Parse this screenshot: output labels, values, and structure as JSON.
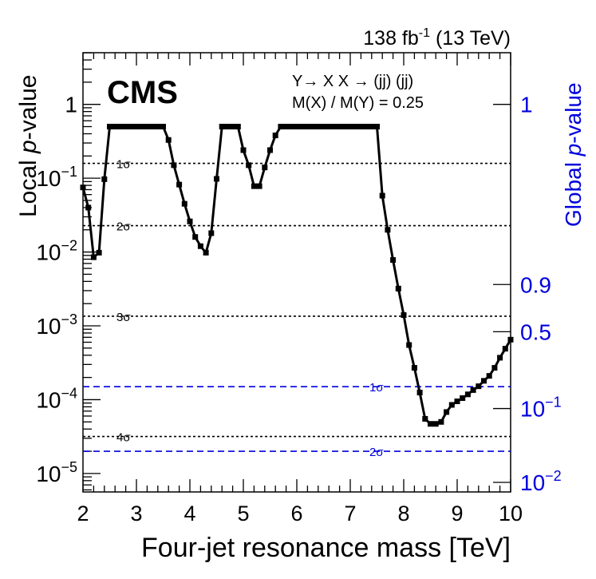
{
  "chart_data": {
    "type": "line",
    "title": "",
    "luminosity_label": "138 fb",
    "luminosity_exp": "-1",
    "luminosity_suffix": " (13 TeV)",
    "experiment_label": "CMS",
    "process_label": "Y→ X X → (jj) (jj)",
    "ratio_label": "M(X) / M(Y) = 0.25",
    "xlabel": "Four-jet resonance mass [TeV]",
    "ylabel_prefix": "Local ",
    "ylabel_italic": "p",
    "ylabel_suffix": "-value",
    "y2label_prefix": "Global ",
    "y2label_italic": "p",
    "y2label_suffix": "-value",
    "xlim": [
      2,
      10
    ],
    "ylim_log10": [
      -5.25,
      0.7
    ],
    "x_ticks": [
      {
        "value": 2,
        "label": "2"
      },
      {
        "value": 3,
        "label": "3"
      },
      {
        "value": 4,
        "label": "4"
      },
      {
        "value": 5,
        "label": "5"
      },
      {
        "value": 6,
        "label": "6"
      },
      {
        "value": 7,
        "label": "7"
      },
      {
        "value": 8,
        "label": "8"
      },
      {
        "value": 9,
        "label": "9"
      },
      {
        "value": 10,
        "label": "10"
      }
    ],
    "y_ticks": [
      {
        "log10": 0,
        "label": "1",
        "exp": ""
      },
      {
        "log10": -1,
        "label": "10",
        "exp": "−1"
      },
      {
        "log10": -2,
        "label": "10",
        "exp": "−2"
      },
      {
        "log10": -3,
        "label": "10",
        "exp": "−3"
      },
      {
        "log10": -4,
        "label": "10",
        "exp": "−4"
      },
      {
        "log10": -5,
        "label": "10",
        "exp": "−5"
      }
    ],
    "global_axis_ticks": [
      {
        "local_log10": 0,
        "label": "1",
        "exp": ""
      },
      {
        "local_log10": -2.44,
        "label": "0.9",
        "exp": ""
      },
      {
        "local_log10": -3.08,
        "label": "0.5",
        "exp": ""
      },
      {
        "local_log10": -4.12,
        "label": "10",
        "exp": "−1"
      },
      {
        "local_log10": -5.12,
        "label": "10",
        "exp": "−2"
      }
    ],
    "local_significance_lines": [
      {
        "label": "1σ",
        "p": 0.1587
      },
      {
        "label": "2σ",
        "p": 0.02275
      },
      {
        "label": "3σ",
        "p": 0.00135
      },
      {
        "label": "4σ",
        "p": 3.17e-05
      }
    ],
    "global_significance_lines": [
      {
        "label": "1σ",
        "p": 0.00015
      },
      {
        "label": "2σ",
        "p": 2e-05
      }
    ],
    "colors": {
      "local": "#000000",
      "global": "#0000dd",
      "series": "#000000"
    },
    "series": [
      {
        "name": "Local p-value",
        "x": [
          2.0,
          2.1,
          2.2,
          2.3,
          2.4,
          2.5,
          2.6,
          2.7,
          2.8,
          2.9,
          3.0,
          3.1,
          3.2,
          3.3,
          3.4,
          3.5,
          3.6,
          3.7,
          3.8,
          3.9,
          4.0,
          4.1,
          4.2,
          4.3,
          4.4,
          4.5,
          4.6,
          4.7,
          4.8,
          4.9,
          5.0,
          5.1,
          5.2,
          5.3,
          5.4,
          5.5,
          5.6,
          5.7,
          5.8,
          5.9,
          6.0,
          6.1,
          6.2,
          6.3,
          6.4,
          6.5,
          6.6,
          6.7,
          6.8,
          6.9,
          7.0,
          7.1,
          7.2,
          7.3,
          7.4,
          7.5,
          7.6,
          7.7,
          7.8,
          7.9,
          8.0,
          8.1,
          8.2,
          8.3,
          8.4,
          8.5,
          8.6,
          8.7,
          8.8,
          8.9,
          9.0,
          9.1,
          9.2,
          9.3,
          9.4,
          9.5,
          9.6,
          9.7,
          9.8,
          9.9,
          10.0
        ],
        "y": [
          0.075,
          0.04,
          0.0085,
          0.0098,
          0.097,
          0.5,
          0.5,
          0.5,
          0.5,
          0.5,
          0.5,
          0.5,
          0.5,
          0.5,
          0.5,
          0.5,
          0.33,
          0.15,
          0.082,
          0.045,
          0.026,
          0.016,
          0.012,
          0.0098,
          0.018,
          0.098,
          0.5,
          0.5,
          0.5,
          0.5,
          0.24,
          0.15,
          0.078,
          0.078,
          0.14,
          0.24,
          0.38,
          0.5,
          0.5,
          0.5,
          0.5,
          0.5,
          0.5,
          0.5,
          0.5,
          0.5,
          0.5,
          0.5,
          0.5,
          0.5,
          0.5,
          0.5,
          0.5,
          0.5,
          0.5,
          0.5,
          0.058,
          0.02,
          0.0078,
          0.0032,
          0.0014,
          0.00055,
          0.00027,
          0.000125,
          5.5e-05,
          4.7e-05,
          4.7e-05,
          5e-05,
          6.8e-05,
          8.5e-05,
          9.5e-05,
          0.000105,
          0.000118,
          0.000135,
          0.000152,
          0.00018,
          0.00021,
          0.00027,
          0.00037,
          0.00049,
          0.00065
        ]
      }
    ]
  }
}
